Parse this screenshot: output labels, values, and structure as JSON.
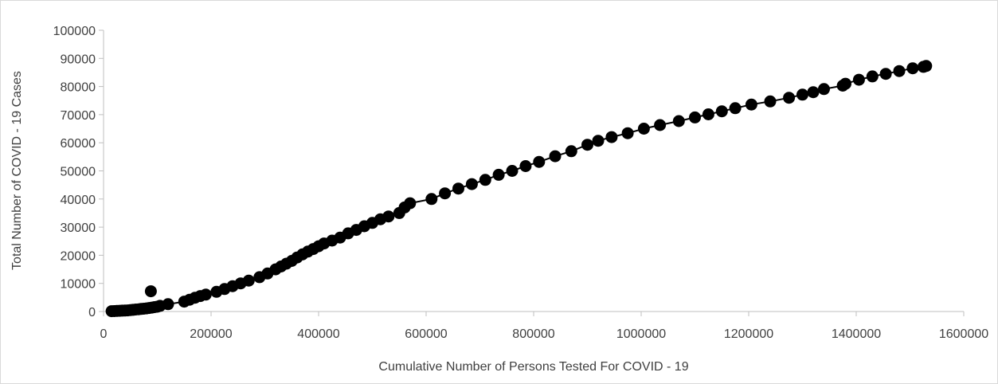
{
  "chart_data": {
    "type": "scatter",
    "xlabel": "Cumulative Number of Persons Tested For COVID - 19",
    "ylabel": "Total Number of COVID - 19 Cases",
    "xlim": [
      0,
      1600000
    ],
    "ylim": [
      0,
      100000
    ],
    "x_ticks": [
      "0",
      "200000",
      "400000",
      "600000",
      "800000",
      "1000000",
      "1200000",
      "1400000",
      "1600000"
    ],
    "y_ticks": [
      "0",
      "10000",
      "20000",
      "30000",
      "40000",
      "50000",
      "60000",
      "70000",
      "80000",
      "90000",
      "100000"
    ],
    "grid": false,
    "legend": "none",
    "marker_color": "#000000",
    "line_color": "#000000",
    "series": [
      {
        "x": [
          15000,
          20000,
          25000,
          30000,
          35000,
          40000,
          45000,
          50000,
          55000,
          60000,
          65000,
          70000,
          75000,
          80000,
          85000,
          90000,
          95000,
          100000,
          105000,
          120000,
          150000,
          160000,
          170000,
          180000,
          190000,
          210000,
          225000,
          240000,
          255000,
          270000,
          290000,
          305000,
          320000,
          330000,
          340000,
          350000,
          360000,
          370000,
          380000,
          390000,
          400000,
          410000,
          425000,
          440000,
          455000,
          470000,
          485000,
          500000,
          515000,
          530000,
          550000,
          560000,
          570000,
          610000,
          635000,
          660000,
          685000,
          710000,
          735000,
          760000,
          785000,
          810000,
          840000,
          870000,
          900000,
          920000,
          945000,
          975000,
          1005000,
          1035000,
          1070000,
          1100000,
          1125000,
          1150000,
          1175000,
          1205000,
          1240000,
          1275000,
          1300000,
          1320000,
          1340000,
          1375000,
          1380000,
          1405000,
          1430000,
          1455000,
          1480000,
          1505000,
          1525000,
          1530000,
          88000
        ],
        "y": [
          100,
          150,
          200,
          250,
          300,
          350,
          400,
          500,
          600,
          700,
          800,
          900,
          1000,
          1100,
          1250,
          1400,
          1550,
          1700,
          2000,
          2600,
          3500,
          4200,
          4900,
          5500,
          6000,
          7000,
          8000,
          9000,
          10000,
          11000,
          12200,
          13500,
          15000,
          16000,
          17000,
          18000,
          19200,
          20300,
          21300,
          22200,
          23200,
          24200,
          25200,
          26300,
          27800,
          29000,
          30300,
          31500,
          32800,
          33800,
          35000,
          37000,
          38500,
          40000,
          42000,
          43700,
          45300,
          46800,
          48600,
          50000,
          51700,
          53200,
          55200,
          57000,
          59300,
          60700,
          62000,
          63400,
          65000,
          66300,
          67700,
          69000,
          70100,
          71200,
          72300,
          73600,
          74700,
          76000,
          77100,
          78000,
          79100,
          80300,
          81000,
          82400,
          83600,
          84500,
          85500,
          86500,
          87000,
          87300,
          7200
        ]
      }
    ]
  }
}
